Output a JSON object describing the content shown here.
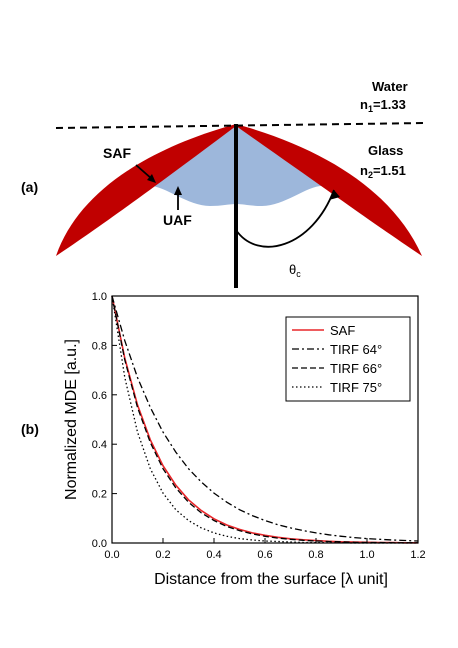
{
  "panel_a": {
    "label": "(a)",
    "medium_top": "Water",
    "n1_label": {
      "base": "n",
      "sub": "1",
      "rest": "=1.33"
    },
    "medium_bottom": "Glass",
    "n2_label": {
      "base": "n",
      "sub": "2",
      "rest": "=1.51"
    },
    "saf_label": "SAF",
    "uaf_label": "UAF",
    "angle_label": {
      "base": "θ",
      "sub": "c"
    },
    "colors": {
      "saf": "#c00000",
      "uaf": "#9db7db"
    }
  },
  "panel_b": {
    "label": "(b)"
  },
  "chart_data": {
    "type": "line",
    "xlabel": "Distance from the surface [λ unit]",
    "ylabel": "Normalized MDE [a.u.]",
    "xlim": [
      0,
      1.2
    ],
    "ylim": [
      0,
      1.0
    ],
    "xticks": [
      "0.0",
      "0.2",
      "0.4",
      "0.6",
      "0.8",
      "1.0",
      "1.2"
    ],
    "yticks": [
      "0.0",
      "0.2",
      "0.4",
      "0.6",
      "0.8",
      "1.0"
    ],
    "grid": false,
    "legend_position": "top-right",
    "x": [
      0.0,
      0.05,
      0.1,
      0.15,
      0.2,
      0.25,
      0.3,
      0.35,
      0.4,
      0.45,
      0.5,
      0.55,
      0.6,
      0.65,
      0.7,
      0.75,
      0.8,
      0.85,
      0.9,
      0.95,
      1.0,
      1.05,
      1.1,
      1.15,
      1.2
    ],
    "series": [
      {
        "name": "SAF",
        "color": "#e8262a",
        "dash": "solid",
        "values": [
          1.0,
          0.748,
          0.559,
          0.418,
          0.313,
          0.234,
          0.175,
          0.131,
          0.098,
          0.073,
          0.055,
          0.041,
          0.031,
          0.023,
          0.017,
          0.013,
          0.01,
          0.007,
          0.005,
          0.004,
          0.003,
          0.002,
          0.002,
          0.001,
          0.001
        ]
      },
      {
        "name": "TIRF 64°",
        "color": "#000000",
        "dash": "dashdot",
        "values": [
          1.0,
          0.819,
          0.67,
          0.549,
          0.449,
          0.368,
          0.301,
          0.247,
          0.202,
          0.165,
          0.135,
          0.111,
          0.091,
          0.074,
          0.061,
          0.05,
          0.041,
          0.033,
          0.027,
          0.022,
          0.018,
          0.015,
          0.012,
          0.01,
          0.008
        ]
      },
      {
        "name": "TIRF 66°",
        "color": "#000000",
        "dash": "dashed",
        "values": [
          1.0,
          0.741,
          0.549,
          0.407,
          0.301,
          0.223,
          0.165,
          0.122,
          0.091,
          0.067,
          0.05,
          0.037,
          0.027,
          0.02,
          0.015,
          0.011,
          0.008,
          0.006,
          0.005,
          0.003,
          0.002,
          0.002,
          0.001,
          0.001,
          0.001
        ]
      },
      {
        "name": "TIRF 75°",
        "color": "#000000",
        "dash": "dotted",
        "values": [
          1.0,
          0.67,
          0.449,
          0.301,
          0.202,
          0.135,
          0.091,
          0.061,
          0.041,
          0.027,
          0.018,
          0.012,
          0.008,
          0.006,
          0.004,
          0.002,
          0.002,
          0.001,
          0.001,
          0.0,
          0.0,
          0.0,
          0.0,
          0.0,
          0.0
        ]
      }
    ]
  }
}
